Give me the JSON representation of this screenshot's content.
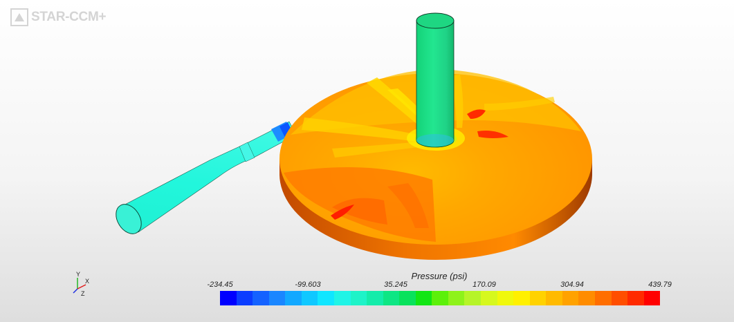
{
  "app": {
    "logo_text": "STAR-CCM+"
  },
  "scene": {
    "triad": {
      "x_label": "X",
      "y_label": "Y",
      "z_label": "Z"
    }
  },
  "legend": {
    "title": "Pressure (psi)",
    "tick_labels": [
      "-234.45",
      "-99.603",
      "35.245",
      "170.09",
      "304.94",
      "439.79"
    ],
    "colors": [
      "#0000ff",
      "#0b3dff",
      "#1462ff",
      "#1a86ff",
      "#12a8ff",
      "#0fc8ff",
      "#10e6ff",
      "#20f4e6",
      "#1ef3c8",
      "#14ecaa",
      "#0ee684",
      "#08e25c",
      "#12e614",
      "#5cf00a",
      "#8ef21a",
      "#b6f428",
      "#d6f81e",
      "#f0f80c",
      "#fff000",
      "#ffd200",
      "#ffba00",
      "#ffa200",
      "#ff8c00",
      "#ff6e00",
      "#ff4e00",
      "#ff2a00",
      "#ff0000"
    ]
  }
}
